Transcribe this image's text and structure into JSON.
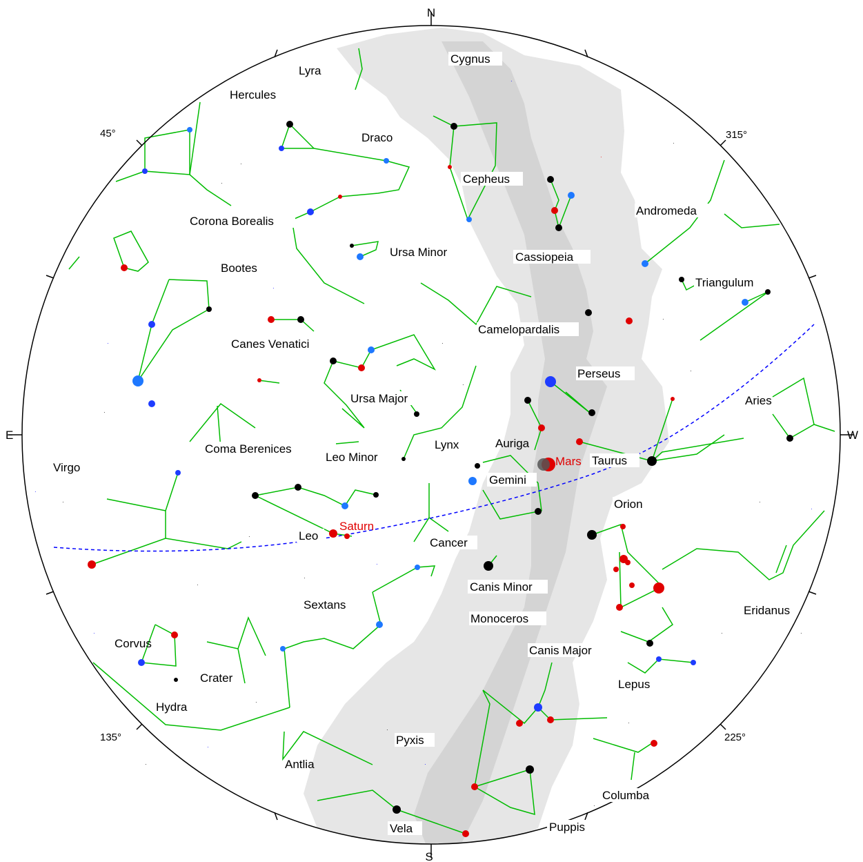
{
  "directions": {
    "north": "N",
    "south": "S",
    "east": "E",
    "west": "W"
  },
  "azimuth_labels": {
    "az45": "45°",
    "az135": "135°",
    "az225": "225°",
    "az315": "315°"
  },
  "constellations": {
    "cygnus": "Cygnus",
    "lyra": "Lyra",
    "hercules": "Hercules",
    "draco": "Draco",
    "cepheus": "Cepheus",
    "corona_borealis": "Corona Borealis",
    "ursa_minor": "Ursa Minor",
    "cassiopeia": "Cassiopeia",
    "andromeda": "Andromeda",
    "bootes": "Bootes",
    "triangulum": "Triangulum",
    "camelopardalis": "Camelopardalis",
    "canes_venatici": "Canes Venatici",
    "perseus": "Perseus",
    "ursa_major": "Ursa Major",
    "aries": "Aries",
    "coma_berenices": "Coma Berenices",
    "leo_minor": "Leo Minor",
    "lynx": "Lynx",
    "auriga": "Auriga",
    "taurus": "Taurus",
    "virgo": "Virgo",
    "gemini": "Gemini",
    "orion": "Orion",
    "leo": "Leo",
    "cancer": "Cancer",
    "canis_minor": "Canis Minor",
    "sextans": "Sextans",
    "monoceros": "Monoceros",
    "eridanus": "Eridanus",
    "corvus": "Corvus",
    "canis_major": "Canis Major",
    "crater": "Crater",
    "lepus": "Lepus",
    "hydra": "Hydra",
    "pyxis": "Pyxis",
    "antlia": "Antlia",
    "columba": "Columba",
    "vela": "Vela",
    "puppis": "Puppis"
  },
  "planets": {
    "mars": "Mars",
    "saturn": "Saturn"
  },
  "colors": {
    "line": "#00bb00",
    "ecliptic": "#0000ff",
    "milky_way": "#e6e6e6",
    "milky_way_core": "#d0d0d0",
    "planet": "#e00000"
  }
}
